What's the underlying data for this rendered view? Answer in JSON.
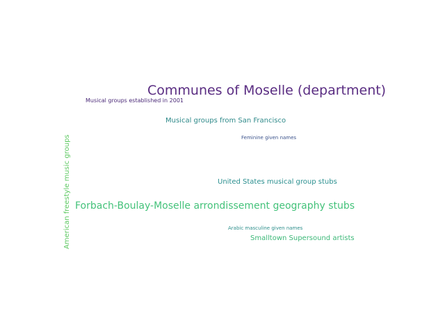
{
  "word_cloud": {
    "words": [
      {
        "text": "Communes of Moselle (department)",
        "color": "#5a2d82"
      },
      {
        "text": "Musical groups established in 2001",
        "color": "#4b2a78"
      },
      {
        "text": "Musical groups from San Francisco",
        "color": "#2f8a8a"
      },
      {
        "text": "Feminine given names",
        "color": "#3b528b"
      },
      {
        "text": "United States musical group stubs",
        "color": "#2a8f8f"
      },
      {
        "text": "Forbach-Boulay-Moselle arrondissement geography stubs",
        "color": "#44c27a"
      },
      {
        "text": "Arabic masculine given names",
        "color": "#2e8f8c"
      },
      {
        "text": "Smalltown Supersound artists",
        "color": "#3cb878"
      },
      {
        "text": "American freestyle music groups",
        "color": "#5ec962"
      }
    ]
  }
}
